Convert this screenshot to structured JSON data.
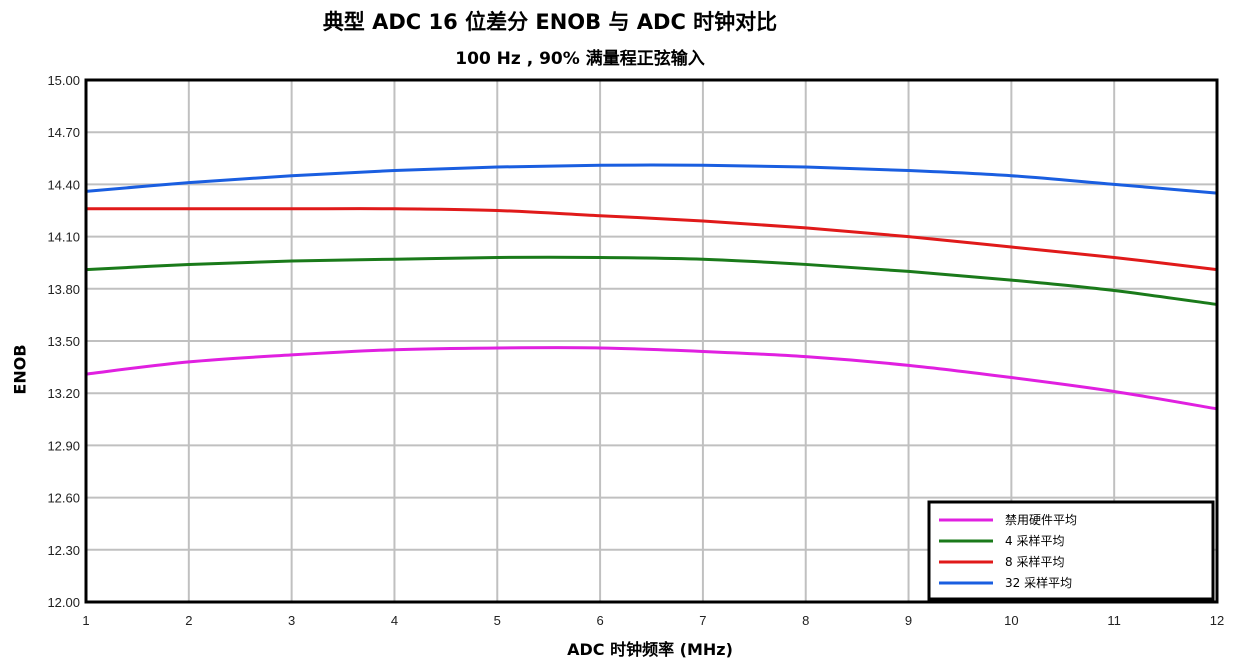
{
  "chart_data": {
    "type": "line",
    "title": "典型 ADC 16 位差分 ENOB 与 ADC 时钟对比",
    "subtitle": "100 Hz , 90% 满量程正弦输入",
    "xlabel": "ADC 时钟频率 (MHz)",
    "ylabel": "ENOB",
    "xlim": [
      1,
      12
    ],
    "ylim": [
      12.0,
      15.0
    ],
    "xticks": [
      "1",
      "2",
      "3",
      "4",
      "5",
      "6",
      "7",
      "8",
      "9",
      "10",
      "11",
      "12"
    ],
    "yticks": [
      "12.00",
      "12.30",
      "12.60",
      "12.90",
      "13.20",
      "13.50",
      "13.80",
      "14.10",
      "14.40",
      "14.70",
      "15.00"
    ],
    "grid": true,
    "legend_position": "bottom-right",
    "x": [
      1,
      2,
      3,
      4,
      5,
      6,
      7,
      8,
      9,
      10,
      11,
      12
    ],
    "series": [
      {
        "name": "禁用硬件平均",
        "color": "#e020e0",
        "values": [
          13.31,
          13.38,
          13.42,
          13.45,
          13.46,
          13.46,
          13.44,
          13.41,
          13.36,
          13.29,
          13.21,
          13.11
        ]
      },
      {
        "name": "4 采样平均",
        "color": "#1a7a1a",
        "values": [
          13.91,
          13.94,
          13.96,
          13.97,
          13.98,
          13.98,
          13.97,
          13.94,
          13.9,
          13.85,
          13.79,
          13.71
        ]
      },
      {
        "name": "8 采样平均",
        "color": "#e01a1a",
        "values": [
          14.26,
          14.26,
          14.26,
          14.26,
          14.25,
          14.22,
          14.19,
          14.15,
          14.1,
          14.04,
          13.98,
          13.91
        ]
      },
      {
        "name": "32 采样平均",
        "color": "#1a5ee0",
        "values": [
          14.36,
          14.41,
          14.45,
          14.48,
          14.5,
          14.51,
          14.51,
          14.5,
          14.48,
          14.45,
          14.4,
          14.35
        ]
      }
    ]
  }
}
